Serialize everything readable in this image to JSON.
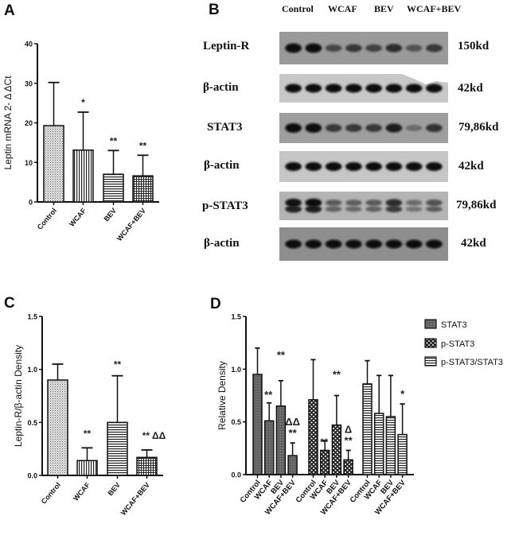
{
  "panels": {
    "A": {
      "letter": "A"
    },
    "B": {
      "letter": "B"
    },
    "C": {
      "letter": "C"
    },
    "D": {
      "letter": "D"
    }
  },
  "blot": {
    "lane_headers": [
      "Control",
      "WCAF",
      "BEV",
      "WCAF+BEV"
    ],
    "rows": [
      {
        "label": "Leptin-R",
        "kd": "150kd",
        "bg": "#9a9a9a",
        "bands": [
          1.0,
          1.0,
          0.45,
          0.6,
          0.5,
          0.7,
          0.35,
          0.6
        ],
        "double": false
      },
      {
        "label": "β-actin",
        "kd": "42kd",
        "bg": "#c8c8c8",
        "bands": [
          1,
          1,
          1,
          1,
          1,
          1,
          1,
          1
        ],
        "double": false
      },
      {
        "label": "STAT3",
        "kd": "79,86kd",
        "bg": "#9e9e9e",
        "bands": [
          1.0,
          1.0,
          0.6,
          0.6,
          0.6,
          0.85,
          0.15,
          0.65
        ],
        "double": false
      },
      {
        "label": "β-actin",
        "kd": "42kd",
        "bg": "#c6c6c6",
        "bands": [
          1,
          1,
          1,
          1,
          1,
          1,
          1,
          1
        ],
        "double": false
      },
      {
        "label": "p-STAT3",
        "kd": "79,86kd",
        "bg": "#b4b4b4",
        "bands": [
          0.95,
          1.0,
          0.4,
          0.35,
          0.4,
          0.75,
          0.25,
          0.45
        ],
        "double": true
      },
      {
        "label": "β-actin",
        "kd": "42kd",
        "bg": "#8e8e8e",
        "bands": [
          1,
          1,
          1,
          1,
          1,
          1,
          1,
          1
        ],
        "double": false
      }
    ]
  },
  "chart_data": [
    {
      "panel": "A",
      "type": "bar",
      "title": "",
      "xlabel": "",
      "ylabel": "Leptin mRNA 2- Δ ΔCt",
      "ylim": [
        0,
        40
      ],
      "yticks": [
        0,
        10,
        20,
        30,
        40
      ],
      "categories": [
        "Control",
        "WCAF",
        "BEV",
        "WCAF+BEV"
      ],
      "values": [
        19.3,
        13.1,
        7.0,
        6.6
      ],
      "errors_upper": [
        30.2,
        22.7,
        13.0,
        11.8
      ],
      "annotations": [
        "",
        "*",
        "**",
        "**"
      ],
      "patterns": [
        "dots",
        "vlines",
        "hlines",
        "grid"
      ],
      "grid": false
    },
    {
      "panel": "C",
      "type": "bar",
      "title": "",
      "xlabel": "",
      "ylabel": "Leptin-R/β-actin Density",
      "ylim": [
        0,
        1.5
      ],
      "yticks": [
        "0.0",
        "0.5",
        "1.0",
        "1.5"
      ],
      "categories": [
        "Control",
        "WCAF",
        "BEV",
        "WCAF+BEV"
      ],
      "values": [
        0.9,
        0.14,
        0.5,
        0.17
      ],
      "errors_upper": [
        1.05,
        0.26,
        0.94,
        0.24
      ],
      "annotations": [
        "",
        "**",
        "**",
        "** ΔΔ"
      ],
      "patterns": [
        "dots",
        "vlines",
        "hlines",
        "grid"
      ],
      "grid": false
    },
    {
      "panel": "D",
      "type": "bar",
      "title": "",
      "xlabel": "",
      "ylabel": "Relative Density",
      "ylim": [
        0,
        1.5
      ],
      "yticks": [
        "0.0",
        "0.5",
        "1.0",
        "1.5"
      ],
      "categories": [
        "Control",
        "WCAF",
        "BEV",
        "WCAF+BEV"
      ],
      "legend_position": "right",
      "series": [
        {
          "name": "STAT3",
          "pattern": "darkdots",
          "values": [
            0.95,
            0.51,
            0.65,
            0.18
          ],
          "errors_upper": [
            1.2,
            0.68,
            0.89,
            0.3
          ],
          "annotations": [
            "",
            "**",
            "**",
            "ΔΔ\n**"
          ]
        },
        {
          "name": "p-STAT3",
          "pattern": "checker",
          "values": [
            0.71,
            0.23,
            0.47,
            0.14
          ],
          "errors_upper": [
            1.09,
            0.32,
            0.75,
            0.23
          ],
          "annotations": [
            "",
            "**",
            "**",
            "Δ\n**"
          ]
        },
        {
          "name": "p-STAT3/STAT3",
          "pattern": "hlines",
          "values": [
            0.86,
            0.58,
            0.55,
            0.38
          ],
          "errors_upper": [
            1.08,
            0.94,
            0.94,
            0.67
          ],
          "annotations": [
            "",
            "",
            "",
            "*"
          ]
        }
      ],
      "grid": false
    }
  ]
}
